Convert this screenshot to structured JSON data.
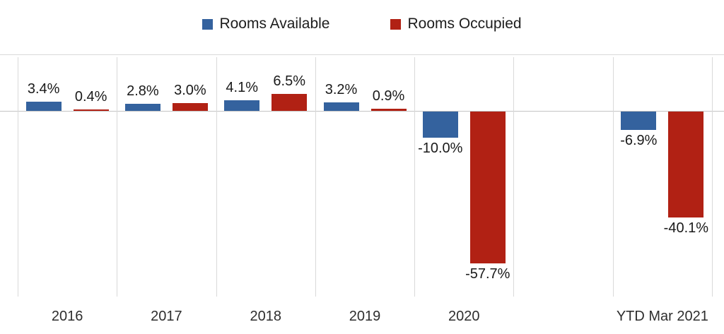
{
  "chart_data": {
    "type": "bar",
    "title": "",
    "xlabel": "",
    "ylabel": "",
    "value_format": "percent",
    "grid": "vertical-category-separators",
    "legend_position": "top-center",
    "ylim_pct": [
      21,
      -71
    ],
    "categories": [
      "2016",
      "2017",
      "2018",
      "2019",
      "2020",
      "",
      "YTD Mar 2021"
    ],
    "series": [
      {
        "name": "Rooms Available",
        "color": "#34629E",
        "values": [
          3.4,
          2.8,
          4.1,
          3.2,
          -10.0,
          null,
          -6.9
        ],
        "labels": [
          "3.4%",
          "2.8%",
          "4.1%",
          "3.2%",
          "-10.0%",
          null,
          "-6.9%"
        ]
      },
      {
        "name": "Rooms Occupied",
        "color": "#B12114",
        "values": [
          0.4,
          3.0,
          6.5,
          0.9,
          -57.7,
          null,
          -40.1
        ],
        "labels": [
          "0.4%",
          "3.0%",
          "6.5%",
          "0.9%",
          "-57.7%",
          null,
          "-40.1%"
        ]
      }
    ]
  }
}
